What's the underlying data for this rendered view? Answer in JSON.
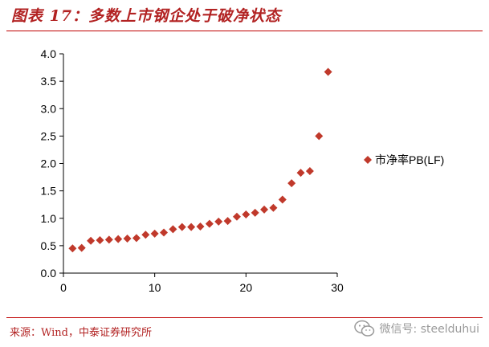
{
  "figure": {
    "title": "图表 17：多数上市钢企处于破净状态",
    "source": "来源：Wind，中泰证券研究所",
    "watermark": "微信号: steelduhui"
  },
  "chart_data": {
    "type": "scatter",
    "marker": "diamond",
    "series": [
      {
        "name": "市净率PB(LF)",
        "color": "#c0392b",
        "x": [
          1,
          2,
          3,
          4,
          5,
          6,
          7,
          8,
          9,
          10,
          11,
          12,
          13,
          14,
          15,
          16,
          17,
          18,
          19,
          20,
          21,
          22,
          23,
          24,
          25,
          26,
          27,
          28,
          29
        ],
        "y": [
          0.45,
          0.46,
          0.59,
          0.6,
          0.61,
          0.62,
          0.63,
          0.64,
          0.7,
          0.72,
          0.74,
          0.8,
          0.84,
          0.84,
          0.85,
          0.9,
          0.94,
          0.95,
          1.03,
          1.07,
          1.1,
          1.16,
          1.19,
          1.34,
          1.64,
          1.83,
          1.86,
          2.5,
          3.67
        ]
      }
    ],
    "xlim": [
      0,
      30
    ],
    "ylim": [
      0,
      4
    ],
    "xticks": [
      "0",
      "10",
      "20",
      "30"
    ],
    "yticks": [
      "0.0",
      "0.5",
      "1.0",
      "1.5",
      "2.0",
      "2.5",
      "3.0",
      "3.5",
      "4.0"
    ],
    "legend_position": "right",
    "grid": false
  }
}
